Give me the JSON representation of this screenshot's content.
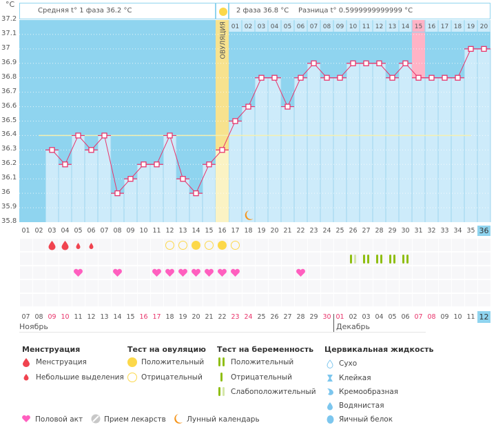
{
  "header": {
    "unit": "°C",
    "phase1": "Средняя t° 1 фаза 36.2 °C",
    "phase2": "2 фаза 36.8 °C",
    "difference": "Разница t° 0.5999999999999 °C",
    "ovulation_label": "ОВУЛЯЦИЯ"
  },
  "chart_data": {
    "type": "line",
    "title": "",
    "xlabel": "",
    "ylabel": "°C",
    "ylim": [
      35.8,
      37.2
    ],
    "yticks": [
      "37.2",
      "37.1",
      "37",
      "36.9",
      "36.8",
      "36.7",
      "36.6",
      "36.5",
      "36.4",
      "36.3",
      "36.2",
      "36.1",
      "36",
      "35.9",
      "35.8"
    ],
    "cycle_days": [
      "01",
      "02",
      "03",
      "04",
      "05",
      "06",
      "07",
      "08",
      "09",
      "10",
      "11",
      "12",
      "13",
      "14",
      "15",
      "16",
      "17",
      "18",
      "19",
      "20",
      "21",
      "22",
      "23",
      "24",
      "25",
      "26",
      "27",
      "28",
      "29",
      "30",
      "31",
      "32",
      "33",
      "34",
      "35",
      "36"
    ],
    "temperatures": [
      null,
      null,
      36.3,
      36.2,
      36.4,
      36.3,
      36.4,
      36.0,
      36.1,
      36.2,
      36.2,
      36.4,
      36.1,
      36.0,
      36.2,
      36.3,
      36.5,
      36.6,
      36.8,
      36.8,
      36.6,
      36.8,
      36.9,
      36.8,
      36.8,
      36.9,
      36.9,
      36.9,
      36.8,
      36.9,
      36.8,
      36.8,
      36.8,
      36.8,
      37.0,
      37.0
    ],
    "coverline": 36.4,
    "coverline_range_days": [
      2,
      35
    ],
    "ovulation_day": 16,
    "phase2_days": [
      "01",
      "02",
      "03",
      "04",
      "05",
      "06",
      "07",
      "08",
      "09",
      "10",
      "11",
      "12",
      "13",
      "14",
      "15",
      "16",
      "17",
      "18",
      "19",
      "20"
    ],
    "highlighted_phase2_day": "15",
    "current_cycle_day": "36",
    "moon_day": 18,
    "colors": {
      "background": "#8fd4ef",
      "bar": "#cdebfa",
      "line": "#e8336a",
      "ovulation": "#fbf3c4",
      "coverline": "#f5f0b0",
      "highlight": "#ffb3c6"
    }
  },
  "dates": {
    "days": [
      "07",
      "08",
      "09",
      "10",
      "11",
      "12",
      "13",
      "14",
      "15",
      "16",
      "17",
      "18",
      "19",
      "20",
      "21",
      "22",
      "23",
      "24",
      "25",
      "26",
      "27",
      "28",
      "29",
      "30",
      "01",
      "02",
      "03",
      "04",
      "05",
      "06",
      "07",
      "08",
      "09",
      "10",
      "11",
      "12"
    ],
    "red": [
      2,
      3,
      9,
      10,
      16,
      17,
      23,
      24,
      30,
      31
    ],
    "months": [
      "Ноябрь",
      "Декабрь"
    ]
  },
  "symbols": {
    "menstruation": {
      "3": "heavy",
      "4": "heavy",
      "5": "light",
      "6": "light"
    },
    "ovulation_test": {
      "12": "negative",
      "13": "negative",
      "14": "positive",
      "15": "negative",
      "16": "positive",
      "17": "negative"
    },
    "pregnancy_test": {
      "26": "weak",
      "27": "positive",
      "28": "positive",
      "29": "positive",
      "30": "positive"
    },
    "intercourse": [
      5,
      8,
      11,
      12,
      13,
      14,
      15,
      16,
      17,
      22
    ]
  },
  "legend": {
    "menstruation": {
      "title": "Менструация",
      "items": [
        "Менструация",
        "Небольшие выделения"
      ]
    },
    "ovulation_test": {
      "title": "Тест на овуляцию",
      "items": [
        "Положительный",
        "Отрицательный"
      ]
    },
    "pregnancy_test": {
      "title": "Тест на беременность",
      "items": [
        "Положительный",
        "Отрицательный",
        "Слабоположительный"
      ]
    },
    "cervical": {
      "title": "Цервикальная жидкость",
      "items": [
        "Сухо",
        "Клейкая",
        "Кремообразная",
        "Водянистая",
        "Яичный белок"
      ]
    },
    "other": [
      "Половой акт",
      "Прием лекарств",
      "Лунный календарь"
    ]
  }
}
